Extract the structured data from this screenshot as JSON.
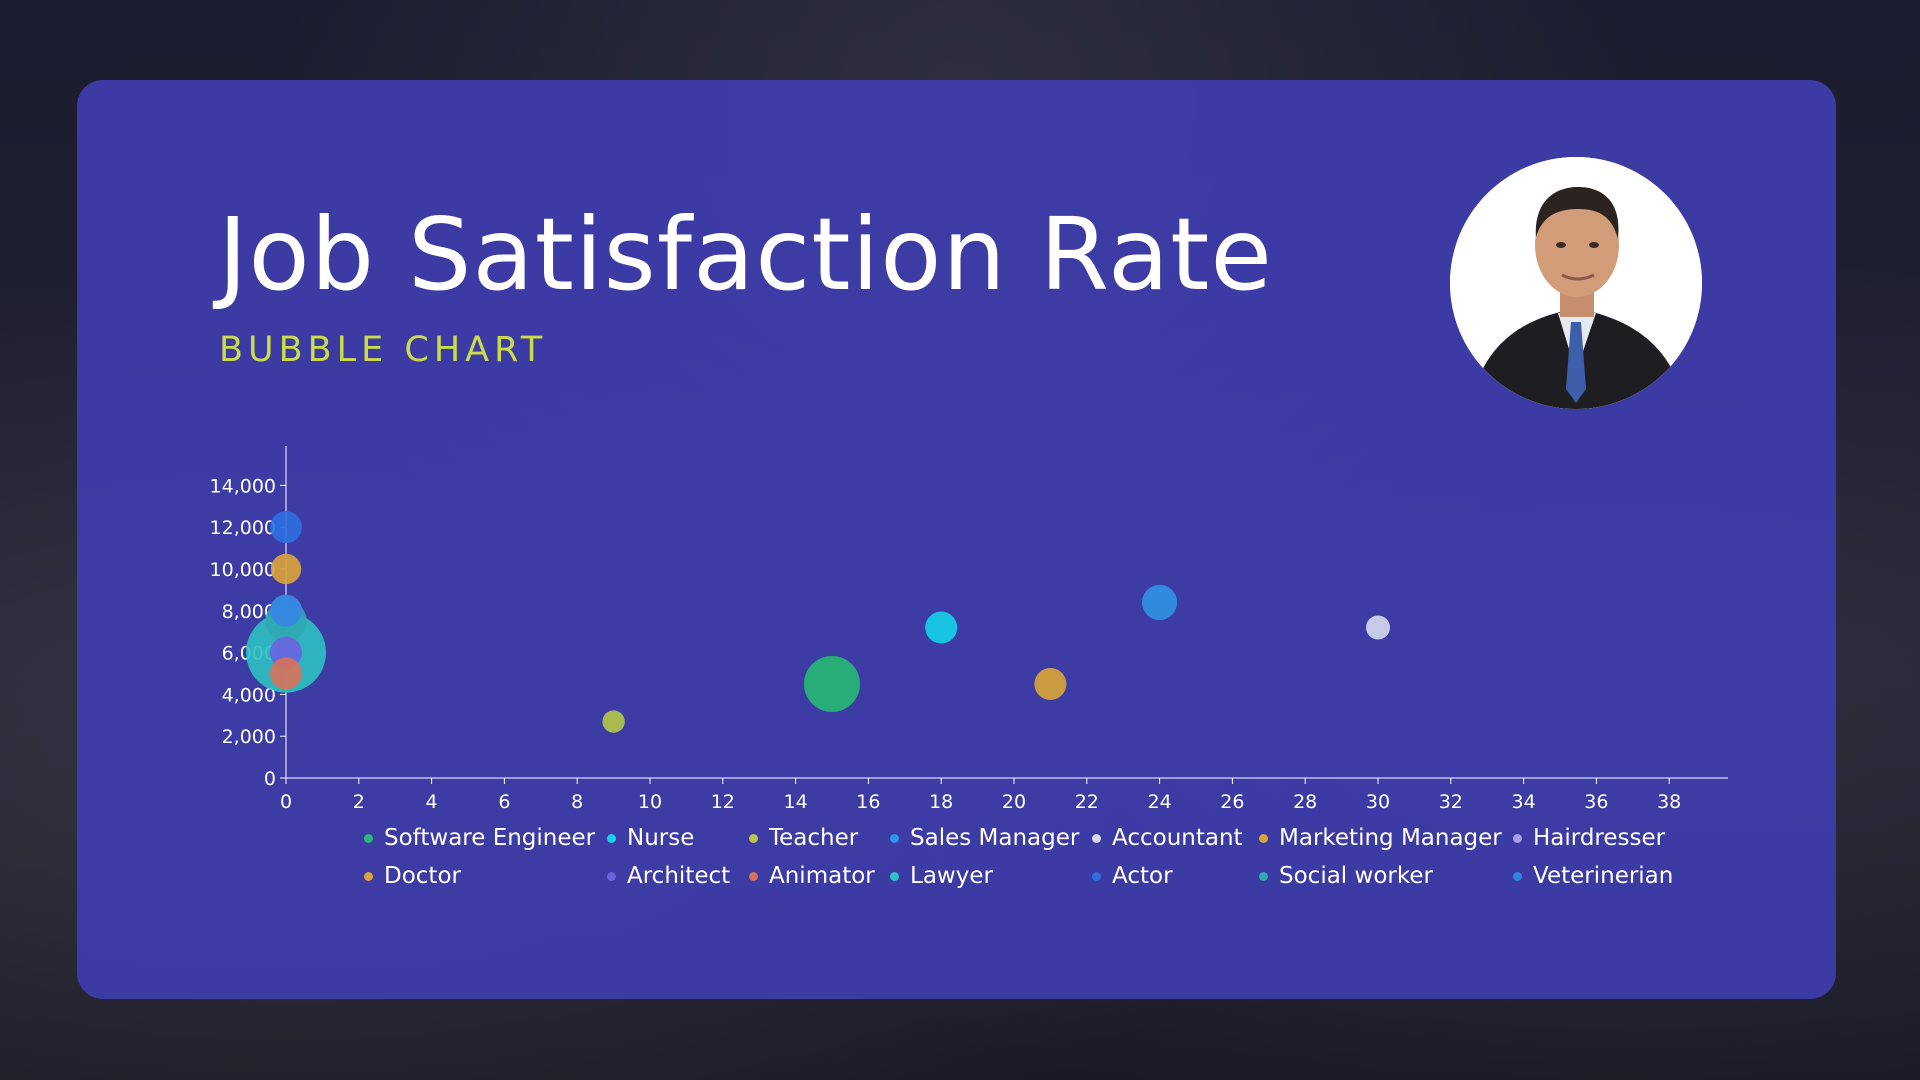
{
  "slide": {
    "title": "Job Satisfaction Rate",
    "subtitle": "BUBBLE CHART"
  },
  "chart_data": {
    "type": "scatter",
    "title": "",
    "xlabel": "",
    "ylabel": "",
    "xlim": [
      0,
      40
    ],
    "ylim": [
      0,
      16000
    ],
    "x_ticks": [
      "0",
      "2",
      "4",
      "6",
      "8",
      "10",
      "12",
      "14",
      "16",
      "18",
      "20",
      "22",
      "24",
      "26",
      "28",
      "30",
      "32",
      "34",
      "36",
      "38"
    ],
    "y_ticks": [
      "0",
      "2,000",
      "4,000",
      "6,000",
      "8,000",
      "10,000",
      "12,000",
      "14,000"
    ],
    "grid": false,
    "legend_position": "bottom",
    "series": [
      {
        "name": "Software Engineer",
        "color": "#27ba74",
        "points": [
          {
            "x": 15,
            "y": 4500,
            "r": 3.5
          }
        ]
      },
      {
        "name": "Nurse",
        "color": "#14d2ea",
        "points": [
          {
            "x": 18,
            "y": 7200,
            "r": 2
          }
        ]
      },
      {
        "name": "Teacher",
        "color": "#b6c94a",
        "points": [
          {
            "x": 9,
            "y": 2700,
            "r": 1.4
          }
        ]
      },
      {
        "name": "Sales Manager",
        "color": "#2f95e6",
        "points": [
          {
            "x": 24,
            "y": 8400,
            "r": 2.2
          }
        ]
      },
      {
        "name": "Accountant",
        "color": "#d5d9ef",
        "points": [
          {
            "x": 30,
            "y": 7200,
            "r": 1.5
          }
        ]
      },
      {
        "name": "Marketing Manager",
        "color": "#d9a636",
        "points": [
          {
            "x": 21,
            "y": 4500,
            "r": 2
          }
        ]
      },
      {
        "name": "Hairdresser",
        "color": "#a89ee8",
        "points": [
          {
            "x": 0,
            "y": 8000,
            "r": 2
          }
        ]
      },
      {
        "name": "Doctor",
        "color": "#dba43a",
        "points": [
          {
            "x": 0,
            "y": 10000,
            "r": 1.9
          }
        ]
      },
      {
        "name": "Architect",
        "color": "#6a64e0",
        "points": [
          {
            "x": 0,
            "y": 6000,
            "r": 2
          }
        ]
      },
      {
        "name": "Animator",
        "color": "#d8725a",
        "points": [
          {
            "x": 0,
            "y": 5000,
            "r": 2
          }
        ]
      },
      {
        "name": "Lawyer",
        "color": "#2ec2c2",
        "points": [
          {
            "x": 0,
            "y": 6000,
            "r": 5
          }
        ]
      },
      {
        "name": "Actor",
        "color": "#2d6fe0",
        "points": [
          {
            "x": 0,
            "y": 12000,
            "r": 2
          }
        ]
      },
      {
        "name": "Social worker",
        "color": "#30a9b4",
        "points": [
          {
            "x": 0,
            "y": 7500,
            "r": 2.6
          }
        ]
      },
      {
        "name": "Veterinerian",
        "color": "#2a86df",
        "points": [
          {
            "x": 0,
            "y": 8000,
            "r": 2
          }
        ]
      }
    ]
  }
}
